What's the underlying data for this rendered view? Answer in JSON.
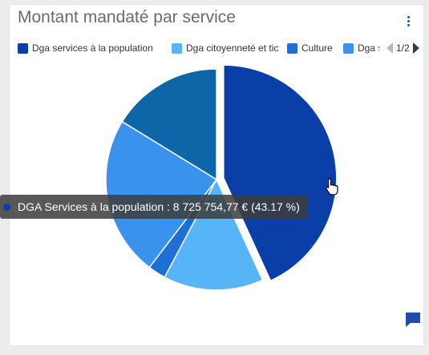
{
  "widget": {
    "title": "Montant mandaté par service"
  },
  "legend": {
    "items": [
      {
        "label": "Dga services à la population",
        "color": "#0a3fa8"
      },
      {
        "label": "Dga citoyenneté et tic",
        "color": "#56b4f7"
      },
      {
        "label": "Culture",
        "color": "#1d6fd4"
      },
      {
        "label": "Dga s",
        "color": "#3a92ec"
      }
    ],
    "page": "1/2"
  },
  "tooltip": {
    "text": "DGA Services à la population : 8 725 754,77 € (43.17 %)",
    "color": "#0a3fa8"
  },
  "chart_data": {
    "type": "pie",
    "title": "Montant mandaté par service",
    "slices": [
      {
        "label": "DGA Services à la population",
        "value": 8725754.77,
        "percent": 43.17,
        "color": "#0a3fa8"
      },
      {
        "label": "",
        "percent": 14.6,
        "color": "#56b4f7"
      },
      {
        "label": "",
        "percent": 2.6,
        "color": "#1d6fd4"
      },
      {
        "label": "",
        "percent": 23.4,
        "color": "#3a92ec"
      },
      {
        "label": "",
        "percent": 16.23,
        "color": "#0d66a8"
      }
    ],
    "legend_position": "top"
  }
}
